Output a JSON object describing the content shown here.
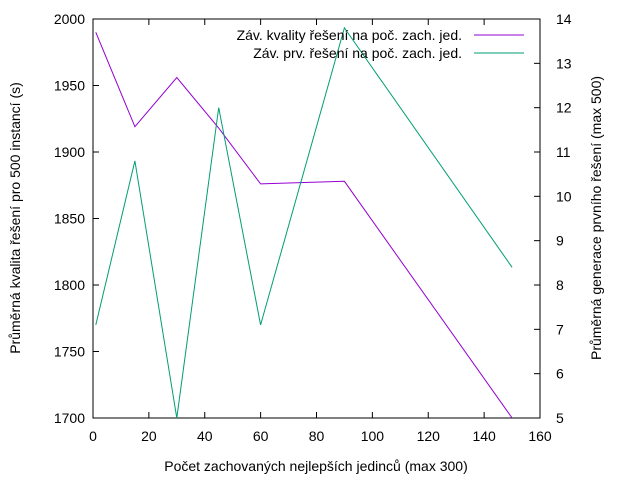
{
  "chart_data": {
    "type": "line",
    "xlabel": "Počet zachovaných nejlepších jedinců (max 300)",
    "ylabel": "Průměrná kvalita řešení pro 500 instancí (s)",
    "y2label": "Průměrná generace prvního řešení (max 500)",
    "xlim": [
      0,
      160
    ],
    "ylim": [
      1700,
      2000
    ],
    "y2lim": [
      5,
      14
    ],
    "xticks": [
      0,
      20,
      40,
      60,
      80,
      100,
      120,
      140,
      160
    ],
    "yticks": [
      1700,
      1750,
      1800,
      1850,
      1900,
      1950,
      2000
    ],
    "y2ticks": [
      5,
      6,
      7,
      8,
      9,
      10,
      11,
      12,
      13,
      14
    ],
    "grid": false,
    "legend_position": "top-right",
    "series": [
      {
        "name": "Záv. kvality řešení na poč. zach. jed.",
        "axis": "y",
        "color": "#9400d3",
        "x": [
          1,
          15,
          30,
          45,
          60,
          90,
          150
        ],
        "y": [
          1990,
          1919,
          1956,
          1918,
          1876,
          1878,
          1700
        ]
      },
      {
        "name": "Záv. prv. řešení na poč. zach. jed.",
        "axis": "y2",
        "color": "#009e73",
        "x": [
          1,
          15,
          30,
          45,
          60,
          90,
          150
        ],
        "y": [
          7.1,
          10.8,
          5.0,
          12.0,
          7.1,
          13.8,
          8.4
        ]
      }
    ]
  }
}
